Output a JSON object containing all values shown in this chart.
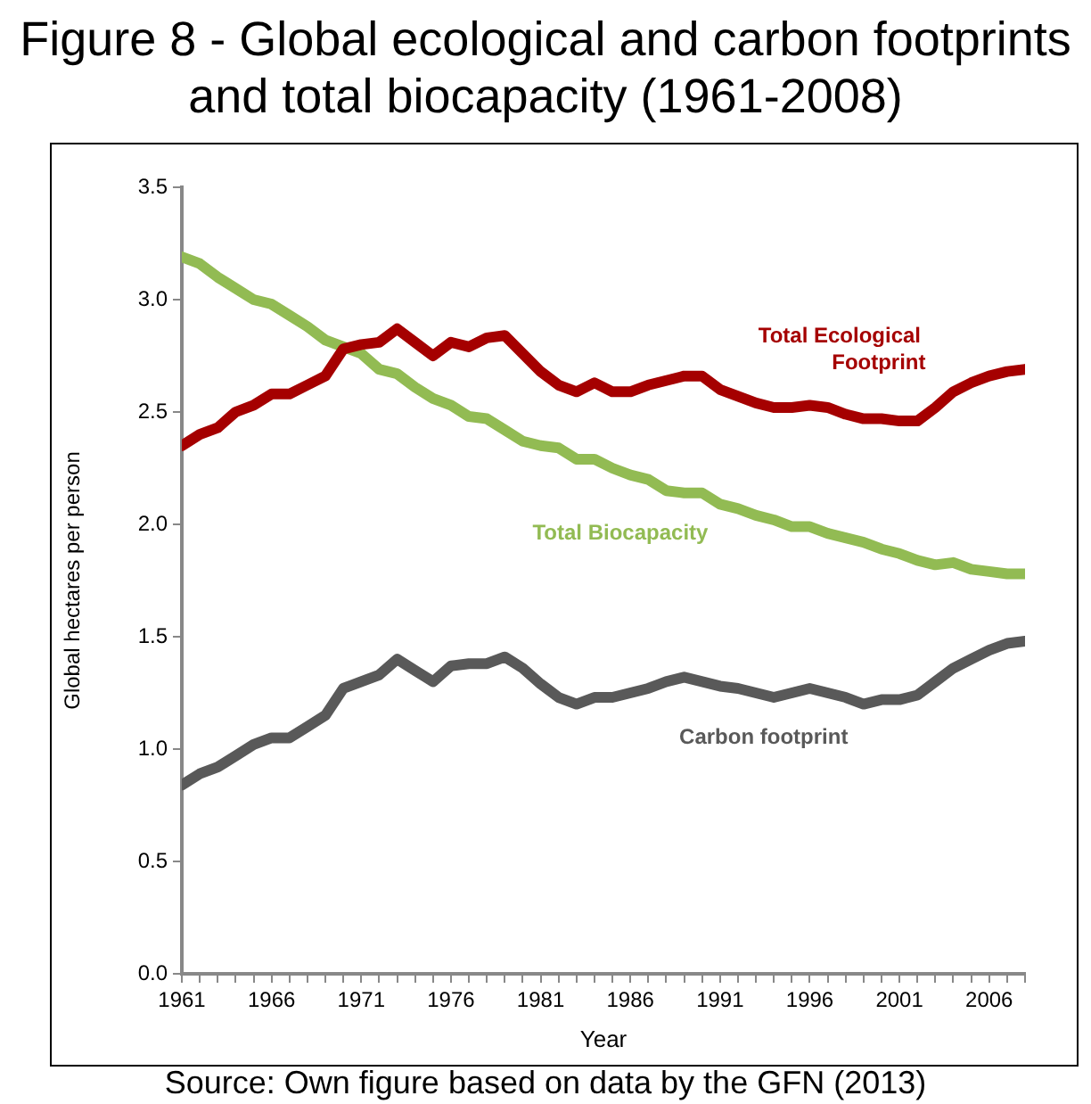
{
  "chart_data": {
    "type": "line",
    "title": "Figure 8 - Global ecological and carbon footprints and total biocapacity (1961-2008)",
    "xlabel": "Year",
    "ylabel": "Global hectares per person",
    "x": [
      1961,
      1962,
      1963,
      1964,
      1965,
      1966,
      1967,
      1968,
      1969,
      1970,
      1971,
      1972,
      1973,
      1974,
      1975,
      1976,
      1977,
      1978,
      1979,
      1980,
      1981,
      1982,
      1983,
      1984,
      1985,
      1986,
      1987,
      1988,
      1989,
      1990,
      1991,
      1992,
      1993,
      1994,
      1995,
      1996,
      1997,
      1998,
      1999,
      2000,
      2001,
      2002,
      2003,
      2004,
      2005,
      2006,
      2007,
      2008
    ],
    "series": [
      {
        "name": "Total Ecological Footprint",
        "color": "#a50000",
        "values": [
          2.35,
          2.4,
          2.43,
          2.5,
          2.53,
          2.58,
          2.58,
          2.62,
          2.66,
          2.78,
          2.8,
          2.81,
          2.87,
          2.81,
          2.75,
          2.81,
          2.79,
          2.83,
          2.84,
          2.76,
          2.68,
          2.62,
          2.59,
          2.63,
          2.59,
          2.59,
          2.62,
          2.64,
          2.66,
          2.66,
          2.6,
          2.57,
          2.54,
          2.52,
          2.52,
          2.53,
          2.52,
          2.49,
          2.47,
          2.47,
          2.46,
          2.46,
          2.52,
          2.59,
          2.63,
          2.66,
          2.68,
          2.69
        ]
      },
      {
        "name": "Total Biocapacity",
        "color": "#92bb53",
        "values": [
          3.19,
          3.16,
          3.1,
          3.05,
          3.0,
          2.98,
          2.93,
          2.88,
          2.82,
          2.79,
          2.76,
          2.69,
          2.67,
          2.61,
          2.56,
          2.53,
          2.48,
          2.47,
          2.42,
          2.37,
          2.35,
          2.34,
          2.29,
          2.29,
          2.25,
          2.22,
          2.2,
          2.15,
          2.14,
          2.14,
          2.09,
          2.07,
          2.04,
          2.02,
          1.99,
          1.99,
          1.96,
          1.94,
          1.92,
          1.89,
          1.87,
          1.84,
          1.82,
          1.83,
          1.8,
          1.79,
          1.78,
          1.78
        ]
      },
      {
        "name": "Carbon footprint",
        "color": "#595959",
        "values": [
          0.84,
          0.89,
          0.92,
          0.97,
          1.02,
          1.05,
          1.05,
          1.1,
          1.15,
          1.27,
          1.3,
          1.33,
          1.4,
          1.35,
          1.3,
          1.37,
          1.38,
          1.38,
          1.41,
          1.36,
          1.29,
          1.23,
          1.2,
          1.23,
          1.23,
          1.25,
          1.27,
          1.3,
          1.32,
          1.3,
          1.28,
          1.27,
          1.25,
          1.23,
          1.25,
          1.27,
          1.25,
          1.23,
          1.2,
          1.22,
          1.22,
          1.24,
          1.3,
          1.36,
          1.4,
          1.44,
          1.47,
          1.48
        ]
      }
    ],
    "xlim": [
      1961,
      2008
    ],
    "xticks": [
      1961,
      {
        "value": 1962,
        "label": null
      },
      {
        "value": 1963,
        "label": null
      },
      {
        "value": 1964,
        "label": null
      },
      {
        "value": 1965,
        "label": null
      },
      1966,
      {
        "value": 1967,
        "label": null
      },
      {
        "value": 1968,
        "label": null
      },
      {
        "value": 1969,
        "label": null
      },
      {
        "value": 1970,
        "label": null
      },
      1971,
      {
        "value": 1972,
        "label": null
      },
      {
        "value": 1973,
        "label": null
      },
      {
        "value": 1974,
        "label": null
      },
      {
        "value": 1975,
        "label": null
      },
      1976,
      {
        "value": 1977,
        "label": null
      },
      {
        "value": 1978,
        "label": null
      },
      {
        "value": 1979,
        "label": null
      },
      {
        "value": 1980,
        "label": null
      },
      1981,
      {
        "value": 1982,
        "label": null
      },
      {
        "value": 1983,
        "label": null
      },
      {
        "value": 1984,
        "label": null
      },
      {
        "value": 1985,
        "label": null
      },
      1986,
      {
        "value": 1987,
        "label": null
      },
      {
        "value": 1988,
        "label": null
      },
      {
        "value": 1989,
        "label": null
      },
      {
        "value": 1990,
        "label": null
      },
      1991,
      {
        "value": 1992,
        "label": null
      },
      {
        "value": 1993,
        "label": null
      },
      {
        "value": 1994,
        "label": null
      },
      {
        "value": 1995,
        "label": null
      },
      1996,
      {
        "value": 1997,
        "label": null
      },
      {
        "value": 1998,
        "label": null
      },
      {
        "value": 1999,
        "label": null
      },
      {
        "value": 2000,
        "label": null
      },
      2001,
      {
        "value": 2002,
        "label": null
      },
      {
        "value": 2003,
        "label": null
      },
      {
        "value": 2004,
        "label": null
      },
      {
        "value": 2005,
        "label": null
      },
      2006,
      {
        "value": 2007,
        "label": null
      },
      {
        "value": 2008,
        "label": null
      }
    ],
    "ylim": [
      0,
      3.5
    ],
    "yticks": [
      {
        "value": 0,
        "label": "0.0"
      },
      {
        "value": 0.5,
        "label": "0.5"
      },
      {
        "value": 1,
        "label": "1.0"
      },
      {
        "value": 1.5,
        "label": "1.5"
      },
      {
        "value": 2,
        "label": "2.0"
      },
      {
        "value": 2.5,
        "label": "2.5"
      },
      {
        "value": 3,
        "label": "3.0"
      },
      {
        "value": 3.5,
        "label": "3.5"
      }
    ],
    "grid": false,
    "legend": false,
    "marker": "none",
    "line_style": "solid",
    "annotations": [
      "Source: Own figure based on data by the GFN (2013)"
    ]
  }
}
